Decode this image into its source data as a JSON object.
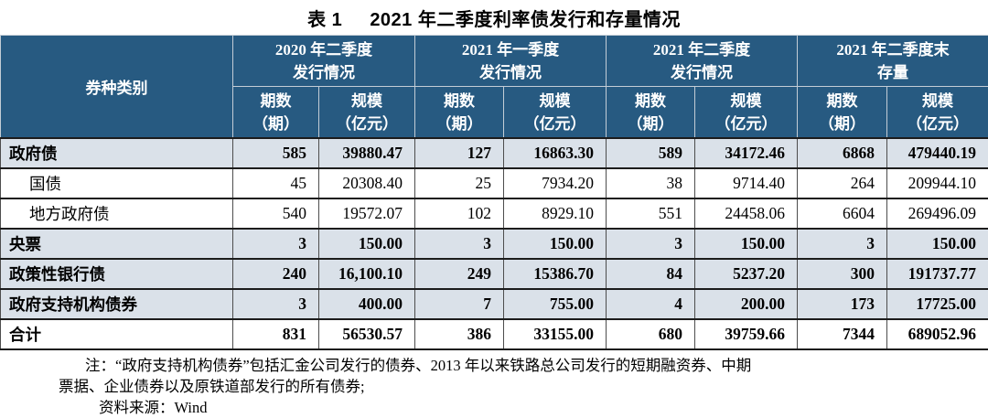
{
  "title": {
    "prefix": "表 1",
    "text": "2021 年二季度利率债发行和存量情况"
  },
  "table": {
    "row_header": "券种类别",
    "col_groups": [
      {
        "line1": "2020 年二季度",
        "line2": "发行情况"
      },
      {
        "line1": "2021 年一季度",
        "line2": "发行情况"
      },
      {
        "line1": "2021 年二季度",
        "line2": "发行情况"
      },
      {
        "line1": "2021 年二季度末",
        "line2": "存量"
      }
    ],
    "sub_header": {
      "count_line1": "期数",
      "count_line2": "（期）",
      "scale_line1": "规模",
      "scale_line2": "（亿元）"
    },
    "rows": [
      {
        "label": "政府债",
        "values": [
          "585",
          "39880.47",
          "127",
          "16863.30",
          "589",
          "34172.46",
          "6868",
          "479440.19"
        ]
      },
      {
        "label": "国债",
        "values": [
          "45",
          "20308.40",
          "25",
          "7934.20",
          "38",
          "9714.40",
          "264",
          "209944.10"
        ]
      },
      {
        "label": "地方政府债",
        "values": [
          "540",
          "19572.07",
          "102",
          "8929.10",
          "551",
          "24458.06",
          "6604",
          "269496.09"
        ]
      },
      {
        "label": "央票",
        "values": [
          "3",
          "150.00",
          "3",
          "150.00",
          "3",
          "150.00",
          "3",
          "150.00"
        ]
      },
      {
        "label": "政策性银行债",
        "values": [
          "240",
          "16,100.10",
          "249",
          "15386.70",
          "84",
          "5237.20",
          "300",
          "191737.77"
        ]
      },
      {
        "label": "政府支持机构债券",
        "values": [
          "3",
          "400.00",
          "7",
          "755.00",
          "4",
          "200.00",
          "173",
          "17725.00"
        ]
      },
      {
        "label": "合计",
        "values": [
          "831",
          "56530.57",
          "386",
          "33155.00",
          "680",
          "39759.66",
          "7344",
          "689052.96"
        ]
      }
    ]
  },
  "notes": {
    "line1": "注：“政府支持机构债券”包括汇金公司发行的债券、2013 年以来铁路总公司发行的短期融资券、中期",
    "line2": "票据、企业债券以及原铁道部发行的所有债券;",
    "line3": "资料来源：Wind"
  },
  "colors": {
    "header_bg": "#275A81",
    "header_text": "#FFFFFF",
    "shaded_row_bg": "#DAE1E9",
    "row_border": "#1C1C1C",
    "header_grid": "#C3CDD6"
  },
  "chart_data": {
    "type": "table",
    "title": "表 1 2021 年二季度利率债发行和存量情况",
    "columns": [
      "券种类别",
      "2020年二季度发行期数(期)",
      "2020年二季度发行规模(亿元)",
      "2021年一季度发行期数(期)",
      "2021年一季度发行规模(亿元)",
      "2021年二季度发行期数(期)",
      "2021年二季度发行规模(亿元)",
      "2021年二季度末存量期数(期)",
      "2021年二季度末存量规模(亿元)"
    ],
    "rows": [
      [
        "政府债",
        585,
        39880.47,
        127,
        16863.3,
        589,
        34172.46,
        6868,
        479440.19
      ],
      [
        "国债",
        45,
        20308.4,
        25,
        7934.2,
        38,
        9714.4,
        264,
        209944.1
      ],
      [
        "地方政府债",
        540,
        19572.07,
        102,
        8929.1,
        551,
        24458.06,
        6604,
        269496.09
      ],
      [
        "央票",
        3,
        150.0,
        3,
        150.0,
        3,
        150.0,
        3,
        150.0
      ],
      [
        "政策性银行债",
        240,
        16100.1,
        249,
        15386.7,
        84,
        5237.2,
        300,
        191737.77
      ],
      [
        "政府支持机构债券",
        3,
        400.0,
        7,
        755.0,
        4,
        200.0,
        173,
        17725.0
      ],
      [
        "合计",
        831,
        56530.57,
        386,
        33155.0,
        680,
        39759.66,
        7344,
        689052.96
      ]
    ],
    "source": "Wind"
  }
}
